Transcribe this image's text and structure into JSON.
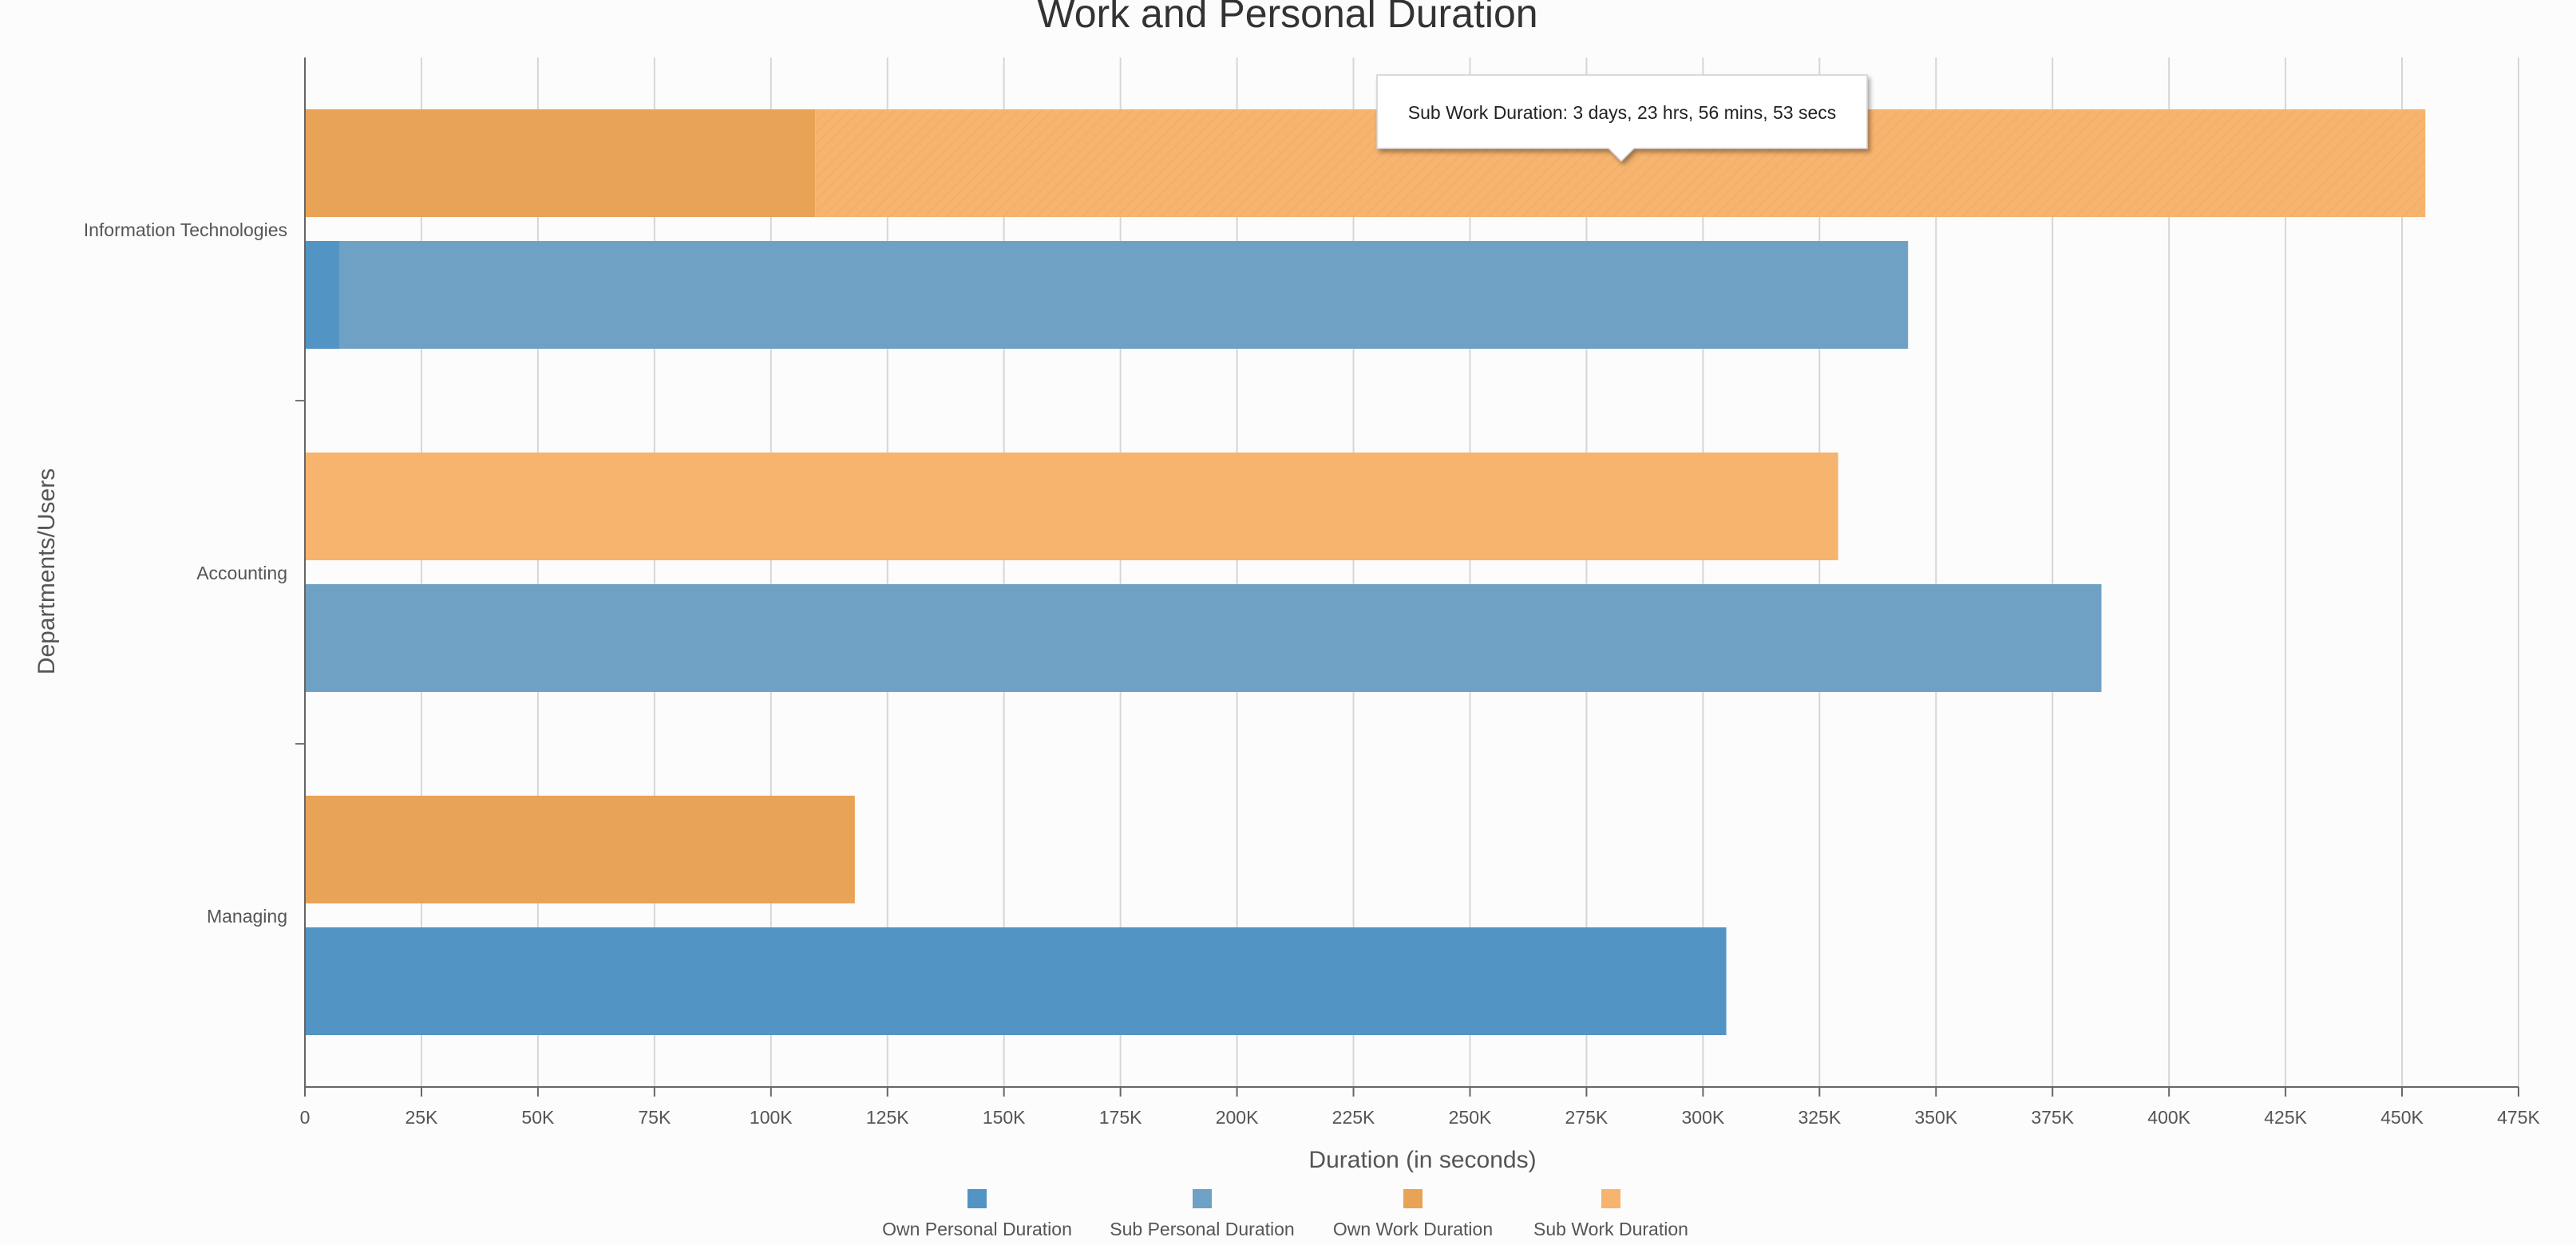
{
  "chart_data": {
    "type": "bar",
    "orientation": "horizontal",
    "stacked": true,
    "title": "Work and Personal Duration",
    "xlabel": "Duration (in seconds)",
    "ylabel": "Departments/Users",
    "xlim": [
      0,
      475000
    ],
    "xticks": [
      0,
      25000,
      50000,
      75000,
      100000,
      125000,
      150000,
      175000,
      200000,
      225000,
      250000,
      275000,
      300000,
      325000,
      350000,
      375000,
      400000,
      425000,
      450000,
      475000
    ],
    "xtick_labels": [
      "0",
      "25K",
      "50K",
      "75K",
      "100K",
      "125K",
      "150K",
      "175K",
      "200K",
      "225K",
      "250K",
      "275K",
      "300K",
      "325K",
      "350K",
      "375K",
      "400K",
      "425K",
      "450K",
      "475K"
    ],
    "grid": "vertical",
    "legend_position": "bottom",
    "categories": [
      "Information Technologies",
      "Accounting",
      "Managing"
    ],
    "series": [
      {
        "name": "Own Personal Duration",
        "stack": "personal",
        "color": "#5294c4",
        "values": [
          7500,
          0,
          305000
        ]
      },
      {
        "name": "Sub Personal Duration",
        "stack": "personal",
        "color": "#6fa1c4",
        "values": [
          336500,
          385500,
          0
        ]
      },
      {
        "name": "Own Work Duration",
        "stack": "work",
        "color": "#e8a356",
        "values": [
          109500,
          0,
          118000
        ]
      },
      {
        "name": "Sub Work Duration",
        "stack": "work",
        "color": "#f6b46f",
        "values": [
          345500,
          329000,
          0
        ]
      }
    ],
    "highlight": {
      "series": 3,
      "category": 0
    },
    "tooltip": {
      "text": "Sub Work Duration: 3 days, 23 hrs, 56 mins, 53 secs"
    }
  }
}
